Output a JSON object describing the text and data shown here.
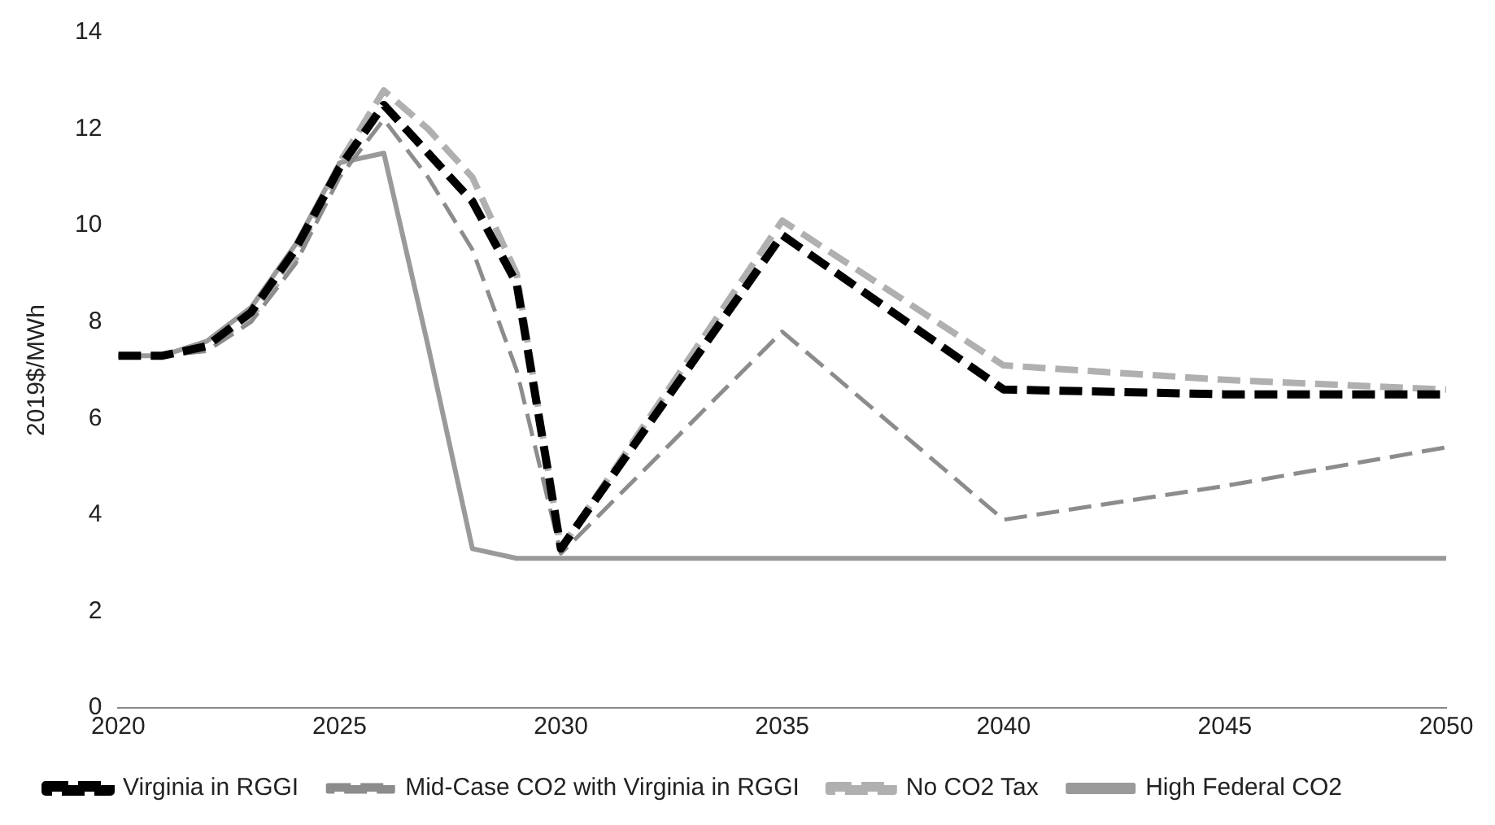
{
  "chart_data": {
    "type": "line",
    "ylabel": "2019$/MWh",
    "xlim": [
      2020,
      2050
    ],
    "xticks": [
      2020,
      2025,
      2030,
      2035,
      2040,
      2045,
      2050
    ],
    "ylim": [
      0,
      14
    ],
    "yticks": [
      0,
      2,
      4,
      6,
      8,
      10,
      12,
      14
    ],
    "grid": false,
    "legend": "bottom",
    "marker": "none",
    "series": [
      {
        "name": "Virginia in RGGI",
        "color": "#000000",
        "line_style": "dashed",
        "x": [
          2020,
          2021,
          2022,
          2023,
          2024,
          2025,
          2026,
          2027,
          2028,
          2029,
          2030,
          2035,
          2040,
          2045,
          2050
        ],
        "values": [
          7.3,
          7.3,
          7.5,
          8.2,
          9.5,
          11.2,
          12.5,
          11.5,
          10.5,
          8.8,
          3.3,
          9.8,
          6.6,
          6.5,
          6.5
        ]
      },
      {
        "name": "Mid-Case CO2 with Virginia in RGGI",
        "color": "#8c8c8c",
        "line_style": "dashed",
        "x": [
          2020,
          2021,
          2022,
          2023,
          2024,
          2025,
          2026,
          2027,
          2028,
          2029,
          2030,
          2035,
          2040,
          2045,
          2050
        ],
        "values": [
          7.3,
          7.3,
          7.4,
          8.0,
          9.2,
          11.0,
          12.2,
          11.0,
          9.5,
          7.0,
          3.2,
          7.8,
          3.9,
          4.6,
          5.4
        ]
      },
      {
        "name": "No CO2 Tax",
        "color": "#b0b0b0",
        "line_style": "dashed",
        "x": [
          2020,
          2021,
          2022,
          2023,
          2024,
          2025,
          2026,
          2027,
          2028,
          2029,
          2030,
          2035,
          2040,
          2045,
          2050
        ],
        "values": [
          7.3,
          7.3,
          7.5,
          8.1,
          9.3,
          11.3,
          12.8,
          12.0,
          11.0,
          9.0,
          3.3,
          10.1,
          7.1,
          6.8,
          6.6
        ]
      },
      {
        "name": "High Federal CO2",
        "color": "#9a9a9a",
        "line_style": "solid",
        "x": [
          2020,
          2021,
          2022,
          2023,
          2024,
          2025,
          2026,
          2027,
          2028,
          2029,
          2030,
          2035,
          2040,
          2045,
          2050
        ],
        "values": [
          7.3,
          7.3,
          7.6,
          8.3,
          9.6,
          11.3,
          11.5,
          7.5,
          3.3,
          3.1,
          3.1,
          3.1,
          3.1,
          3.1,
          3.1
        ]
      }
    ]
  }
}
